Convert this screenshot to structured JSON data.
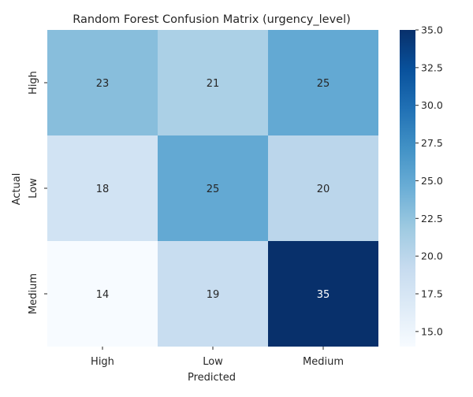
{
  "chart_data": {
    "type": "heatmap",
    "title": "Random Forest Confusion Matrix (urgency_level)",
    "xlabel": "Predicted",
    "ylabel": "Actual",
    "x_categories": [
      "High",
      "Low",
      "Medium"
    ],
    "y_categories": [
      "High",
      "Low",
      "Medium"
    ],
    "values": [
      [
        23,
        21,
        25
      ],
      [
        18,
        25,
        20
      ],
      [
        14,
        19,
        35
      ]
    ],
    "colormap": "Blues",
    "color_range": [
      14,
      35
    ],
    "colorbar_ticks": [
      "15.0",
      "17.5",
      "20.0",
      "22.5",
      "25.0",
      "27.5",
      "30.0",
      "32.5",
      "35.0"
    ],
    "grid": false,
    "legend": "colorbar-right"
  }
}
